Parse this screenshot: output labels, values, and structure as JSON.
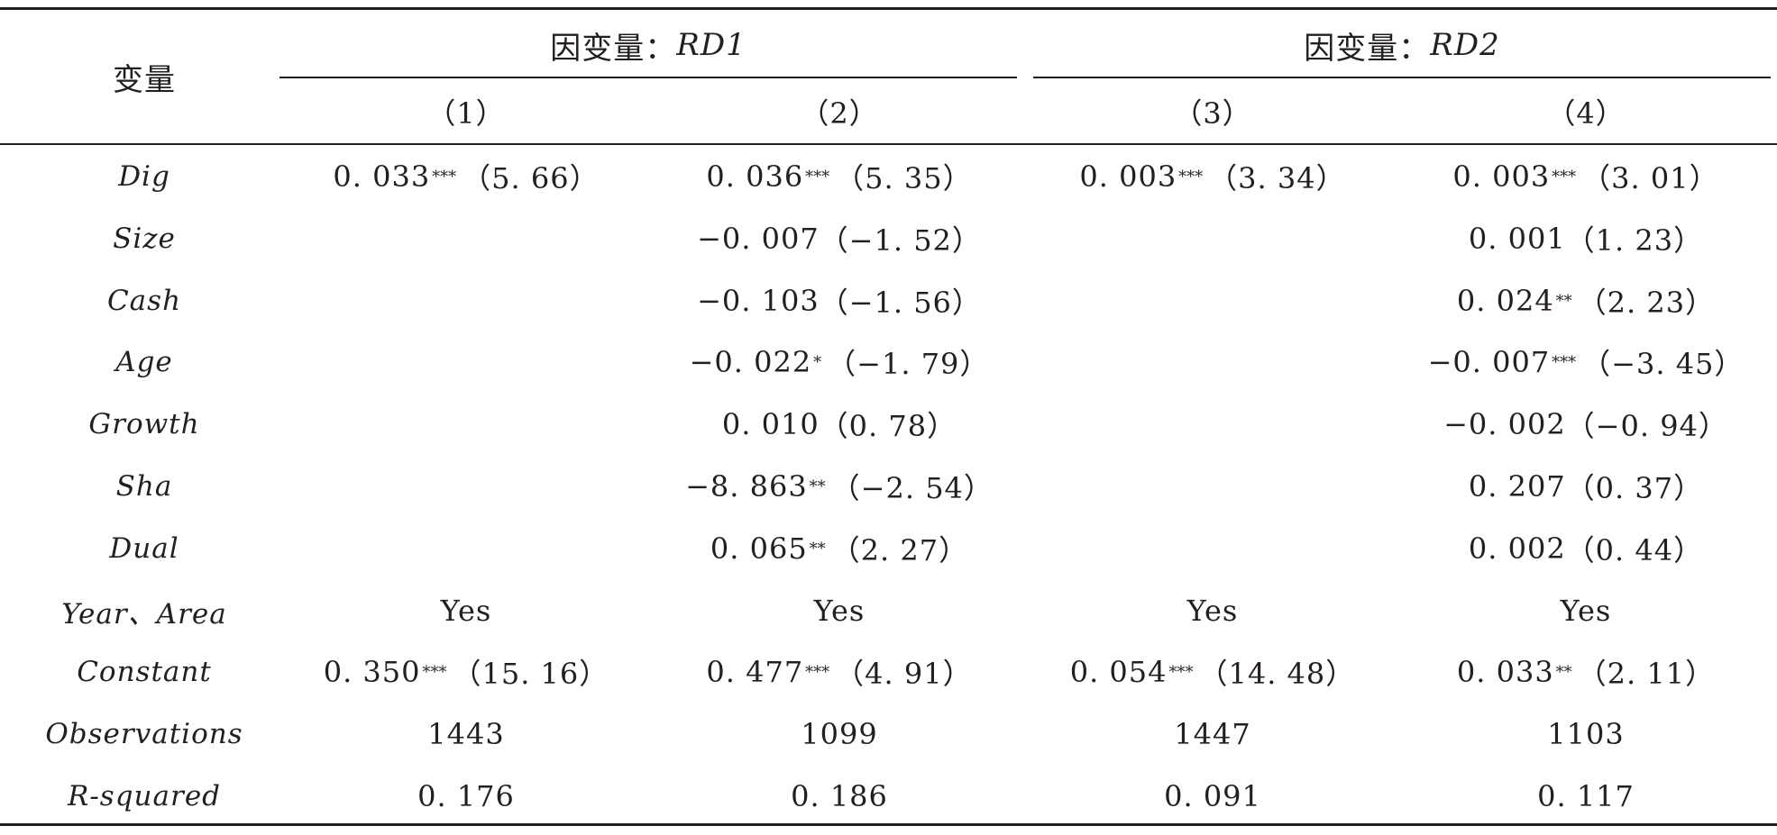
{
  "table": {
    "var_header": "变量",
    "groups": [
      {
        "prefix": "因变量：",
        "var": "RD1"
      },
      {
        "prefix": "因变量：",
        "var": "RD2"
      }
    ],
    "columns": [
      "（1）",
      "（2）",
      "（3）",
      "（4）"
    ],
    "rows": [
      {
        "label": "Dig",
        "cells": [
          {
            "coef": "0. 033",
            "stars": "***",
            "t": "（5. 66）"
          },
          {
            "coef": "0. 036",
            "stars": "***",
            "t": "（5. 35）"
          },
          {
            "coef": "0. 003",
            "stars": "***",
            "t": "（3. 34）"
          },
          {
            "coef": "0. 003",
            "stars": "***",
            "t": "（3. 01）"
          }
        ]
      },
      {
        "label": "Size",
        "cells": [
          {
            "coef": "",
            "stars": "",
            "t": ""
          },
          {
            "coef": "−0. 007",
            "stars": "",
            "t": "（−1. 52）"
          },
          {
            "coef": "",
            "stars": "",
            "t": ""
          },
          {
            "coef": "0. 001",
            "stars": "",
            "t": "（1. 23）"
          }
        ]
      },
      {
        "label": "Cash",
        "cells": [
          {
            "coef": "",
            "stars": "",
            "t": ""
          },
          {
            "coef": "−0. 103",
            "stars": "",
            "t": "（−1. 56）"
          },
          {
            "coef": "",
            "stars": "",
            "t": ""
          },
          {
            "coef": "0. 024",
            "stars": "**",
            "t": "（2. 23）"
          }
        ]
      },
      {
        "label": "Age",
        "cells": [
          {
            "coef": "",
            "stars": "",
            "t": ""
          },
          {
            "coef": "−0. 022",
            "stars": "*",
            "t": "（−1. 79）"
          },
          {
            "coef": "",
            "stars": "",
            "t": ""
          },
          {
            "coef": "−0. 007",
            "stars": "***",
            "t": "（−3. 45）"
          }
        ]
      },
      {
        "label": "Growth",
        "cells": [
          {
            "coef": "",
            "stars": "",
            "t": ""
          },
          {
            "coef": "0. 010",
            "stars": "",
            "t": "（0. 78）"
          },
          {
            "coef": "",
            "stars": "",
            "t": ""
          },
          {
            "coef": "−0. 002",
            "stars": "",
            "t": "（−0. 94）"
          }
        ]
      },
      {
        "label": "Sha",
        "cells": [
          {
            "coef": "",
            "stars": "",
            "t": ""
          },
          {
            "coef": "−8. 863",
            "stars": "**",
            "t": "（−2. 54）"
          },
          {
            "coef": "",
            "stars": "",
            "t": ""
          },
          {
            "coef": "0. 207",
            "stars": "",
            "t": "（0. 37）"
          }
        ]
      },
      {
        "label": "Dual",
        "cells": [
          {
            "coef": "",
            "stars": "",
            "t": ""
          },
          {
            "coef": "0. 065",
            "stars": "**",
            "t": "（2. 27）"
          },
          {
            "coef": "",
            "stars": "",
            "t": ""
          },
          {
            "coef": "0. 002",
            "stars": "",
            "t": "（0. 44）"
          }
        ]
      },
      {
        "label": "Year、Area",
        "cells": [
          {
            "coef": "Yes",
            "stars": "",
            "t": ""
          },
          {
            "coef": "Yes",
            "stars": "",
            "t": ""
          },
          {
            "coef": "Yes",
            "stars": "",
            "t": ""
          },
          {
            "coef": "Yes",
            "stars": "",
            "t": ""
          }
        ]
      },
      {
        "label": "Constant",
        "cells": [
          {
            "coef": "0. 350",
            "stars": "***",
            "t": "（15. 16）"
          },
          {
            "coef": "0. 477",
            "stars": "***",
            "t": "（4. 91）"
          },
          {
            "coef": "0. 054",
            "stars": "***",
            "t": "（14. 48）"
          },
          {
            "coef": "0. 033",
            "stars": "**",
            "t": "（2. 11）"
          }
        ]
      },
      {
        "label": "Observations",
        "cells": [
          {
            "coef": "1443",
            "stars": "",
            "t": ""
          },
          {
            "coef": "1099",
            "stars": "",
            "t": ""
          },
          {
            "coef": "1447",
            "stars": "",
            "t": ""
          },
          {
            "coef": "1103",
            "stars": "",
            "t": ""
          }
        ]
      },
      {
        "label": "R-squared",
        "cells": [
          {
            "coef": "0. 176",
            "stars": "",
            "t": ""
          },
          {
            "coef": "0. 186",
            "stars": "",
            "t": ""
          },
          {
            "coef": "0. 091",
            "stars": "",
            "t": ""
          },
          {
            "coef": "0. 117",
            "stars": "",
            "t": ""
          }
        ]
      }
    ]
  }
}
